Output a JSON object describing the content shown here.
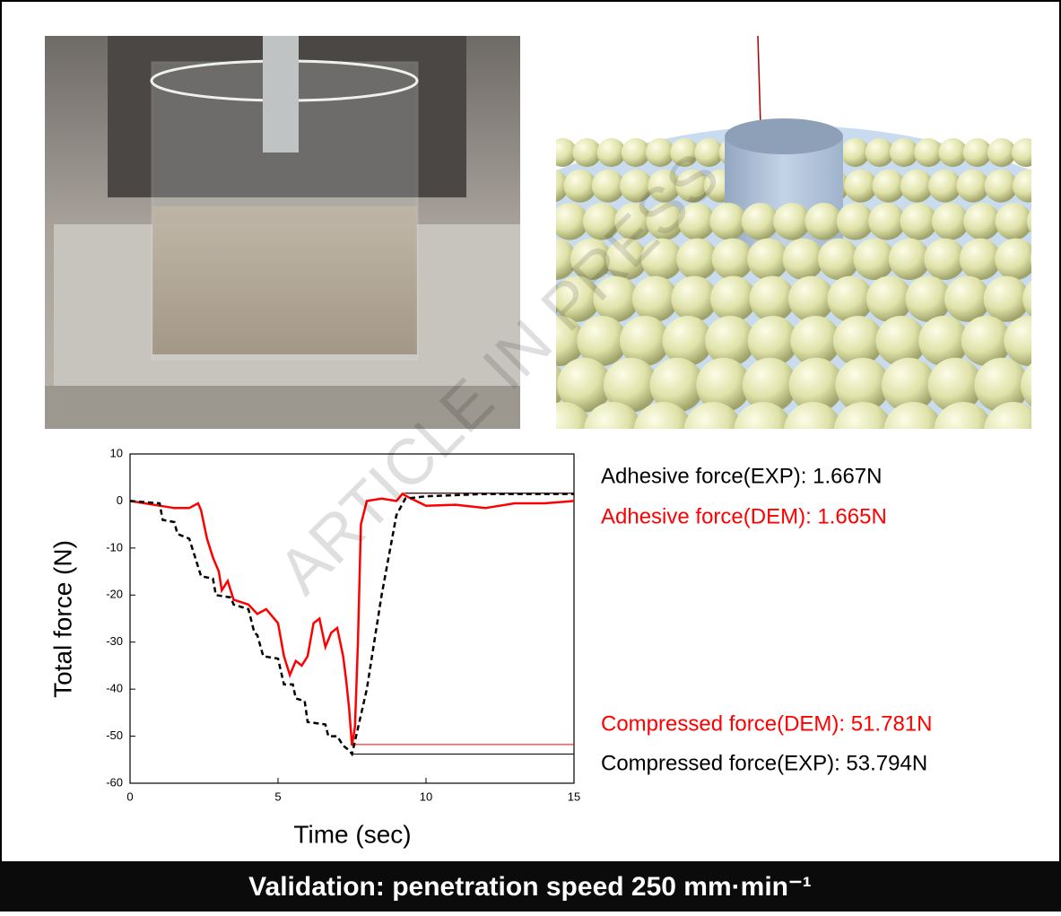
{
  "chart_data": {
    "type": "line",
    "xlabel": "Time (sec)",
    "ylabel": "Total force (N)",
    "xlim": [
      0,
      15
    ],
    "xticks": [
      0,
      5,
      10,
      15
    ],
    "ylim": [
      -60,
      10
    ],
    "yticks": [
      10,
      0,
      -10,
      -20,
      -30,
      -40,
      -50,
      -60
    ],
    "series": [
      {
        "color": "#ff0000",
        "dash": false,
        "x": [
          0,
          0.5,
          1,
          1.5,
          2,
          2.3,
          2.4,
          2.6,
          2.8,
          3,
          3.1,
          3.3,
          3.5,
          4,
          4.3,
          4.6,
          5,
          5.2,
          5.4,
          5.6,
          5.8,
          6,
          6.2,
          6.4,
          6.6,
          6.8,
          7,
          7.2,
          7.3,
          7.4,
          7.5,
          7.6,
          7.7,
          7.8,
          8,
          8.5,
          9,
          9.2,
          9.5,
          10,
          11,
          12,
          13,
          14,
          15
        ],
        "values": [
          0,
          -0.5,
          -1,
          -1.5,
          -1.5,
          -0.5,
          -2,
          -8,
          -12,
          -15,
          -19,
          -17,
          -21,
          -22,
          -24,
          -23,
          -26,
          -33,
          -37,
          -34,
          -35,
          -33,
          -26,
          -25,
          -31,
          -28,
          -27,
          -33,
          -38,
          -44,
          -52,
          -48,
          -30,
          -5,
          0,
          0.5,
          0,
          1.5,
          0.5,
          -1,
          -0.8,
          -1.5,
          -0.5,
          -0.5,
          0
        ]
      },
      {
        "color": "#000000",
        "dash": true,
        "x": [
          0,
          1,
          1.1,
          1.5,
          1.6,
          2,
          2.2,
          2.4,
          2.8,
          2.9,
          3.4,
          3.5,
          4,
          4.2,
          4.3,
          4.5,
          5,
          5.2,
          5.5,
          5.6,
          5.9,
          6,
          6.6,
          6.7,
          7,
          7.2,
          7.4,
          7.5,
          8,
          8.5,
          9,
          9.3,
          10,
          12,
          15
        ],
        "values": [
          0,
          -0.5,
          -4,
          -4.5,
          -7,
          -8,
          -12,
          -16,
          -16.5,
          -20,
          -20.5,
          -22,
          -23,
          -28,
          -28.5,
          -33,
          -33.5,
          -39,
          -39,
          -42,
          -42.5,
          -47,
          -47.5,
          -50,
          -50,
          -52,
          -53,
          -53.8,
          -40,
          -20,
          -3,
          0.5,
          1,
          1.5,
          1.5
        ]
      }
    ],
    "hlines": [
      {
        "value": 1.665,
        "color": "#ff0000",
        "xrange": [
          9.2,
          15
        ]
      },
      {
        "value": 1.667,
        "color": "#000000",
        "xrange": [
          9.3,
          15
        ]
      },
      {
        "value": -51.781,
        "color": "#ff0000",
        "xrange": [
          7.5,
          15
        ]
      },
      {
        "value": -53.794,
        "color": "#000000",
        "xrange": [
          7.5,
          15
        ]
      }
    ],
    "annotations": [
      {
        "text": "Adhesive force(EXP): 1.667N",
        "color": "#000000"
      },
      {
        "text": "Adhesive force(DEM): 1.665N",
        "color": "#ff0000"
      },
      {
        "text": "Compressed force(DEM): 51.781N",
        "color": "#ff0000"
      },
      {
        "text": "Compressed force(EXP): 53.794N",
        "color": "#000000"
      }
    ]
  },
  "watermark": "ARTICLE IN PRESS",
  "caption": "Validation: penetration speed 250 mm·min⁻¹"
}
